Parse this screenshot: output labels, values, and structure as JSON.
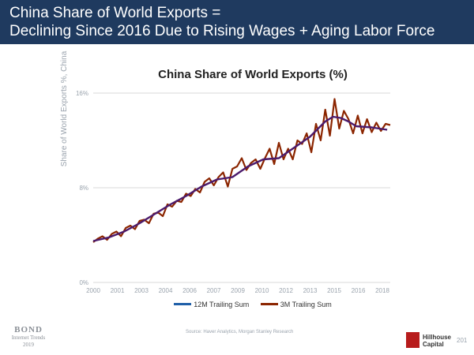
{
  "slide": {
    "title_line1": "China Share of World Exports =",
    "title_line2": "Declining Since 2016 Due to Rising Wages + Aging Labor Force",
    "source": "Source: Haver Analytics, Morgan Stanley Research",
    "page_number": "201",
    "brand_left": "BOND",
    "brand_left_sub1": "Internet Trends",
    "brand_left_sub2": "2019",
    "brand_right_1": "Hillhouse",
    "brand_right_2": "Capital",
    "colors": {
      "header_bg": "#1f3a5f",
      "logo_red": "#b71c1c"
    }
  },
  "chart_data": {
    "type": "line",
    "title": "China Share of World Exports (%)",
    "ylabel": "Share of World Exports %, China",
    "xlabel": "",
    "x_ticks": [
      "2000",
      "2001",
      "2003",
      "2004",
      "2006",
      "2007",
      "2009",
      "2010",
      "2012",
      "2013",
      "2015",
      "2016",
      "2018"
    ],
    "y_ticks": [
      "0%",
      "8%",
      "16%"
    ],
    "ylim": [
      0,
      16
    ],
    "xlim": [
      2000.0,
      2019.2
    ],
    "grid": true,
    "legend_position": "bottom",
    "series": [
      {
        "name": "12M Trailing Sum",
        "color": "#4b1a6b",
        "x": [
          2000.0,
          2001.0,
          2002.0,
          2003.0,
          2004.0,
          2005.0,
          2006.0,
          2007.0,
          2008.0,
          2009.0,
          2010.0,
          2011.0,
          2012.0,
          2013.0,
          2014.0,
          2015.0,
          2015.5,
          2016.0,
          2016.5,
          2017.0,
          2018.0,
          2018.5,
          2019.0
        ],
        "y": [
          3.5,
          3.8,
          4.3,
          5.0,
          5.8,
          6.6,
          7.3,
          8.1,
          8.7,
          8.9,
          9.8,
          10.4,
          10.5,
          11.4,
          12.3,
          13.6,
          14.0,
          13.9,
          13.6,
          13.2,
          13.1,
          13.0,
          12.9
        ]
      },
      {
        "name": "3M Trailing Sum",
        "color": "#8b2500",
        "x": [
          2000.0,
          2000.3,
          2000.6,
          2000.9,
          2001.2,
          2001.5,
          2001.8,
          2002.1,
          2002.4,
          2002.7,
          2003.0,
          2003.3,
          2003.6,
          2003.9,
          2004.2,
          2004.5,
          2004.8,
          2005.1,
          2005.4,
          2005.7,
          2006.0,
          2006.3,
          2006.6,
          2006.9,
          2007.2,
          2007.5,
          2007.8,
          2008.1,
          2008.4,
          2008.7,
          2009.0,
          2009.3,
          2009.6,
          2009.9,
          2010.2,
          2010.5,
          2010.8,
          2011.1,
          2011.4,
          2011.7,
          2012.0,
          2012.3,
          2012.6,
          2012.9,
          2013.2,
          2013.5,
          2013.8,
          2014.1,
          2014.4,
          2014.7,
          2015.0,
          2015.3,
          2015.6,
          2015.9,
          2016.2,
          2016.5,
          2016.8,
          2017.1,
          2017.4,
          2017.7,
          2018.0,
          2018.3,
          2018.6,
          2018.9,
          2019.2
        ],
        "y": [
          3.4,
          3.7,
          3.9,
          3.6,
          4.1,
          4.3,
          3.9,
          4.6,
          4.8,
          4.5,
          5.2,
          5.3,
          5.0,
          5.8,
          5.9,
          5.6,
          6.6,
          6.4,
          6.9,
          6.8,
          7.5,
          7.3,
          7.9,
          7.6,
          8.5,
          8.8,
          8.2,
          8.9,
          9.3,
          8.1,
          9.6,
          9.8,
          10.5,
          9.5,
          10.1,
          10.4,
          9.6,
          10.5,
          11.3,
          10.0,
          11.8,
          10.4,
          11.3,
          10.4,
          12.0,
          11.7,
          12.6,
          11.0,
          13.4,
          12.0,
          14.6,
          12.4,
          15.5,
          13.0,
          14.5,
          13.8,
          12.6,
          14.1,
          12.6,
          13.8,
          12.7,
          13.5,
          12.8,
          13.4,
          13.3
        ]
      }
    ]
  }
}
